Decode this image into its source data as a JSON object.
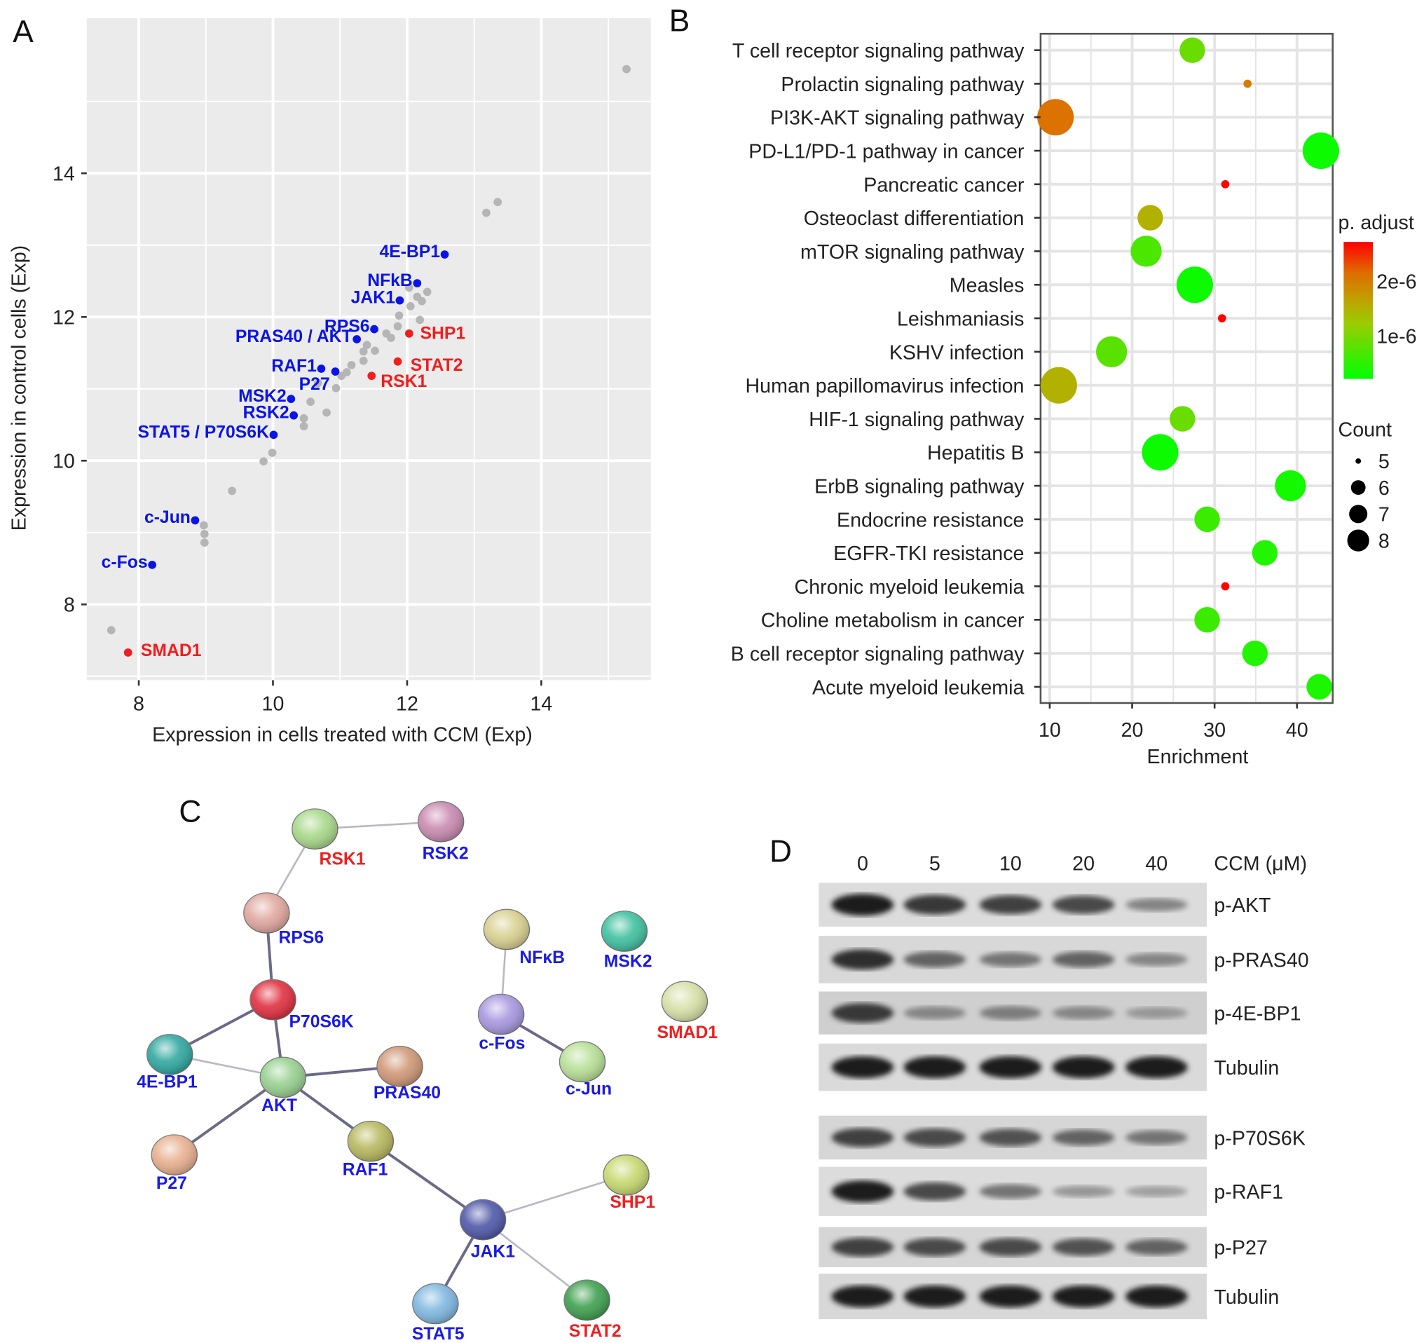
{
  "panels": {
    "a": "A",
    "b": "B",
    "c": "C",
    "d": "D"
  },
  "chart_data": [
    {
      "panel": "A",
      "type": "scatter",
      "xlabel": "Expression in cells treated with CCM (Exp)",
      "ylabel": "Expression in control cells (Exp)",
      "xlim": [
        7.4,
        15.8
      ],
      "ylim": [
        7.0,
        15.9
      ],
      "xticks": [
        "8",
        "10",
        "12",
        "14"
      ],
      "yticks": [
        "8",
        "10",
        "12",
        "14"
      ],
      "grid": true,
      "colors": {
        "background": "#ebebeb",
        "grey": "#b5b5b5",
        "blue": "#0a14e6",
        "red": "#f01e1e"
      },
      "labeled_points": [
        {
          "label": "4E-BP1",
          "x": 12.56,
          "y": 12.87,
          "group": "blue"
        },
        {
          "label": "NFkB",
          "x": 12.15,
          "y": 12.47,
          "group": "blue"
        },
        {
          "label": "JAK1",
          "x": 11.89,
          "y": 12.23,
          "group": "blue"
        },
        {
          "label": "RPS6",
          "x": 11.51,
          "y": 11.83,
          "group": "blue"
        },
        {
          "label": "PRAS40 / AKT",
          "x": 11.25,
          "y": 11.69,
          "group": "blue"
        },
        {
          "label": "RAF1",
          "x": 10.72,
          "y": 11.28,
          "group": "blue"
        },
        {
          "label": "P27",
          "x": 10.93,
          "y": 11.24,
          "group": "blue"
        },
        {
          "label": "MSK2",
          "x": 10.27,
          "y": 10.86,
          "group": "blue"
        },
        {
          "label": "RSK2",
          "x": 10.31,
          "y": 10.63,
          "group": "blue"
        },
        {
          "label": "STAT5  / P70S6K",
          "x": 10.01,
          "y": 10.36,
          "group": "blue"
        },
        {
          "label": "c-Jun",
          "x": 8.84,
          "y": 9.17,
          "group": "blue"
        },
        {
          "label": "c-Fos",
          "x": 8.2,
          "y": 8.55,
          "group": "blue"
        },
        {
          "label": "SHP1",
          "x": 12.03,
          "y": 11.77,
          "group": "red"
        },
        {
          "label": "STAT2",
          "x": 11.86,
          "y": 11.38,
          "group": "red"
        },
        {
          "label": "RSK1",
          "x": 11.47,
          "y": 11.18,
          "group": "red"
        },
        {
          "label": "SMAD1",
          "x": 7.84,
          "y": 7.33,
          "group": "red"
        }
      ],
      "other_points": [
        [
          15.27,
          15.45
        ],
        [
          13.18,
          13.45
        ],
        [
          13.35,
          13.6
        ],
        [
          7.59,
          7.64
        ],
        [
          8.97,
          9.1
        ],
        [
          8.98,
          8.98
        ],
        [
          8.98,
          8.86
        ],
        [
          9.39,
          9.58
        ],
        [
          9.86,
          9.99
        ],
        [
          9.99,
          10.11
        ],
        [
          10.46,
          10.48
        ],
        [
          10.46,
          10.59
        ],
        [
          10.56,
          10.82
        ],
        [
          10.8,
          10.67
        ],
        [
          10.67,
          11.08
        ],
        [
          10.94,
          11.01
        ],
        [
          11.02,
          11.18
        ],
        [
          11.1,
          11.23
        ],
        [
          11.17,
          11.33
        ],
        [
          11.35,
          11.39
        ],
        [
          11.35,
          11.52
        ],
        [
          11.4,
          11.61
        ],
        [
          11.52,
          11.53
        ],
        [
          11.69,
          11.77
        ],
        [
          11.76,
          11.71
        ],
        [
          11.86,
          11.87
        ],
        [
          11.88,
          12.02
        ],
        [
          12.05,
          12.15
        ],
        [
          12.15,
          12.28
        ],
        [
          12.22,
          12.22
        ],
        [
          12.3,
          12.35
        ],
        [
          12.19,
          11.96
        ],
        [
          12.03,
          12.41
        ]
      ]
    },
    {
      "panel": "B",
      "type": "scatter",
      "subtype": "bubble",
      "xlabel": "Enrichment",
      "xlim": [
        9,
        44.5
      ],
      "xticks": [
        "10",
        "20",
        "30",
        "40"
      ],
      "grid": true,
      "legend_position": "right",
      "color_legend": {
        "title": "p. adjust",
        "labels": [
          "2e-6",
          "1e-6"
        ],
        "range": [
          2.2e-07,
          2.72e-06
        ],
        "low_color": "#00ff00",
        "high_color": "#ff0000"
      },
      "size_legend": {
        "title": "Count",
        "labels": [
          "5",
          "6",
          "7",
          "8"
        ]
      },
      "terms": [
        {
          "term": "T cell receptor signaling pathway",
          "enrichment": 27.3,
          "count": 6,
          "p_adjust": 9e-07
        },
        {
          "term": "Prolactin signaling pathway",
          "enrichment": 34.0,
          "count": 5,
          "p_adjust": 2e-06
        },
        {
          "term": "PI3K-AKT signaling pathway",
          "enrichment": 10.7,
          "count": 8,
          "p_adjust": 2.1e-06
        },
        {
          "term": "PD-L1/PD-1 pathway in cancer",
          "enrichment": 42.9,
          "count": 8,
          "p_adjust": 3e-07
        },
        {
          "term": "Pancreatic cancer",
          "enrichment": 31.3,
          "count": 5,
          "p_adjust": 2.7e-06
        },
        {
          "term": "Osteoclast differentiation",
          "enrichment": 22.2,
          "count": 6,
          "p_adjust": 1.5e-06
        },
        {
          "term": "mTOR signaling pathway",
          "enrichment": 21.7,
          "count": 7,
          "p_adjust": 7e-07
        },
        {
          "term": "Measles",
          "enrichment": 27.6,
          "count": 8,
          "p_adjust": 3e-07
        },
        {
          "term": "Leishmaniasis",
          "enrichment": 30.9,
          "count": 5,
          "p_adjust": 2.7e-06
        },
        {
          "term": "KSHV infection",
          "enrichment": 17.5,
          "count": 7,
          "p_adjust": 8e-07
        },
        {
          "term": "Human papillomavirus infection",
          "enrichment": 11.1,
          "count": 8,
          "p_adjust": 1.5e-06
        },
        {
          "term": "HIF-1 signaling pathway",
          "enrichment": 26.1,
          "count": 6,
          "p_adjust": 9e-07
        },
        {
          "term": "Hepatitis B",
          "enrichment": 23.4,
          "count": 8,
          "p_adjust": 3e-07
        },
        {
          "term": "ErbB signaling pathway",
          "enrichment": 39.2,
          "count": 7,
          "p_adjust": 3.5e-07
        },
        {
          "term": "Endocrine resistance",
          "enrichment": 29.1,
          "count": 6,
          "p_adjust": 6e-07
        },
        {
          "term": "EGFR-TKI resistance",
          "enrichment": 36.1,
          "count": 6,
          "p_adjust": 4.5e-07
        },
        {
          "term": "Chronic myeloid leukemia",
          "enrichment": 31.3,
          "count": 5,
          "p_adjust": 2.7e-06
        },
        {
          "term": "Choline metabolism in cancer",
          "enrichment": 29.1,
          "count": 6,
          "p_adjust": 6e-07
        },
        {
          "term": "B cell receptor signaling pathway",
          "enrichment": 34.9,
          "count": 6,
          "p_adjust": 4.5e-07
        },
        {
          "term": "Acute myeloid leukemia",
          "enrichment": 42.7,
          "count": 6,
          "p_adjust": 4e-07
        }
      ]
    }
  ],
  "network": {
    "label_colors": {
      "blue": "#1a1ae6",
      "red": "#f01e1e"
    },
    "nodes": [
      {
        "id": "RSK1",
        "label": "RSK1",
        "group": "red",
        "color": "#a8d88a"
      },
      {
        "id": "RSK2",
        "label": "RSK2",
        "group": "blue",
        "color": "#c98ab0"
      },
      {
        "id": "RPS6",
        "label": "RPS6",
        "group": "blue",
        "color": "#e0a8a0"
      },
      {
        "id": "P70S6K",
        "label": "P70S6K",
        "group": "blue",
        "color": "#e03040"
      },
      {
        "id": "4E-BP1",
        "label": "4E-BP1",
        "group": "blue",
        "color": "#30a8a0"
      },
      {
        "id": "AKT",
        "label": "AKT",
        "group": "blue",
        "color": "#98d090"
      },
      {
        "id": "PRAS40",
        "label": "PRAS40",
        "group": "blue",
        "color": "#d09878"
      },
      {
        "id": "P27",
        "label": "P27",
        "group": "blue",
        "color": "#e8b090"
      },
      {
        "id": "RAF1",
        "label": "RAF1",
        "group": "blue",
        "color": "#b8b860"
      },
      {
        "id": "JAK1",
        "label": "JAK1",
        "group": "blue",
        "color": "#5058a8"
      },
      {
        "id": "STAT5",
        "label": "STAT5",
        "group": "blue",
        "color": "#80b8e0"
      },
      {
        "id": "STAT2",
        "label": "STAT2",
        "group": "red",
        "color": "#40a050"
      },
      {
        "id": "SHP1",
        "label": "SHP1",
        "group": "red",
        "color": "#c8d870"
      },
      {
        "id": "NFKB",
        "label": "NFκB",
        "group": "blue",
        "color": "#d8d090"
      },
      {
        "id": "c-Fos",
        "label": "c-Fos",
        "group": "blue",
        "color": "#a898e0"
      },
      {
        "id": "c-Jun",
        "label": "c-Jun",
        "group": "blue",
        "color": "#b8e098"
      },
      {
        "id": "MSK2",
        "label": "MSK2",
        "group": "blue",
        "color": "#40c0a0"
      },
      {
        "id": "SMAD1",
        "label": "SMAD1",
        "group": "red",
        "color": "#d8e0a8"
      }
    ],
    "edges": [
      [
        "RSK1",
        "RSK2",
        "thin"
      ],
      [
        "RSK1",
        "RPS6",
        "thin"
      ],
      [
        "RPS6",
        "P70S6K",
        "thick"
      ],
      [
        "P70S6K",
        "4E-BP1",
        "thick"
      ],
      [
        "P70S6K",
        "AKT",
        "thick"
      ],
      [
        "4E-BP1",
        "AKT",
        "thin"
      ],
      [
        "AKT",
        "PRAS40",
        "thick"
      ],
      [
        "AKT",
        "P27",
        "thick"
      ],
      [
        "AKT",
        "RAF1",
        "thick"
      ],
      [
        "RAF1",
        "JAK1",
        "thick"
      ],
      [
        "JAK1",
        "SHP1",
        "thin"
      ],
      [
        "JAK1",
        "STAT5",
        "thick"
      ],
      [
        "JAK1",
        "STAT2",
        "thin"
      ],
      [
        "NFKB",
        "c-Fos",
        "thin"
      ],
      [
        "c-Fos",
        "c-Jun",
        "thick"
      ]
    ]
  },
  "western_blot": {
    "treatment_label": "CCM (μM)",
    "concentrations": [
      "0",
      "5",
      "10",
      "20",
      "40"
    ],
    "blots": [
      {
        "label": "p-AKT",
        "intensity": [
          1.0,
          0.85,
          0.8,
          0.75,
          0.4
        ]
      },
      {
        "label": "p-PRAS40",
        "intensity": [
          0.9,
          0.6,
          0.5,
          0.6,
          0.4
        ]
      },
      {
        "label": "p-4E-BP1",
        "intensity": [
          0.85,
          0.4,
          0.45,
          0.4,
          0.3
        ]
      },
      {
        "label": "Tubulin",
        "intensity": [
          1.0,
          1.0,
          1.0,
          1.0,
          1.0
        ]
      },
      {
        "label": "p-P70S6K",
        "intensity": [
          0.8,
          0.75,
          0.7,
          0.6,
          0.5
        ]
      },
      {
        "label": "p-RAF1",
        "intensity": [
          1.0,
          0.75,
          0.5,
          0.3,
          0.25
        ]
      },
      {
        "label": "p-P27",
        "intensity": [
          0.8,
          0.75,
          0.75,
          0.7,
          0.6
        ]
      },
      {
        "label": "Tubulin",
        "intensity": [
          1.0,
          1.0,
          1.0,
          1.0,
          1.0
        ]
      }
    ]
  }
}
